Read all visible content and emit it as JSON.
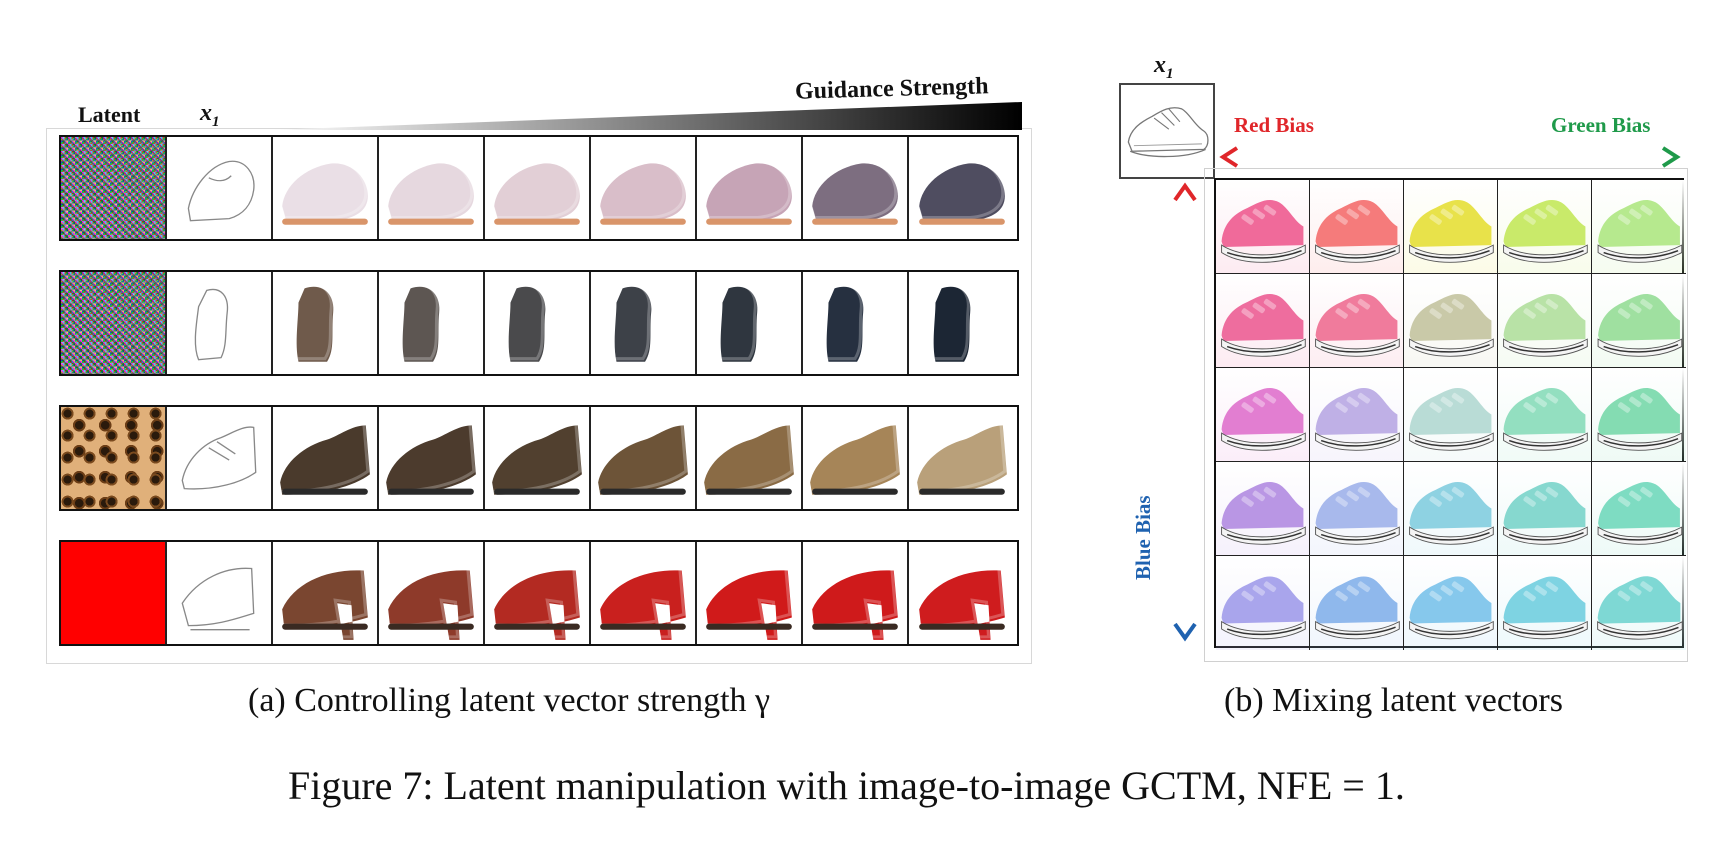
{
  "panel_a": {
    "latent_label": "Latent",
    "x1_label": "x",
    "x1_sub": "1",
    "guidance_label": "Guidance Strength",
    "caption": "(a) Controlling latent vector strength γ",
    "rows": [
      {
        "latent": "noise",
        "colors": [
          "#eadfe6",
          "#e6d8df",
          "#e2cfd6",
          "#d9bec9",
          "#c6a4b6",
          "#7d6e80",
          "#4f4d60"
        ]
      },
      {
        "latent": "noise",
        "colors": [
          "#6f5a4b",
          "#5d5652",
          "#4a4a4c",
          "#3d4148",
          "#2f363f",
          "#263040",
          "#1c2634"
        ]
      },
      {
        "latent": "leopard",
        "colors": [
          "#4a3a2c",
          "#4c3b2d",
          "#51402f",
          "#6d5438",
          "#8a6b45",
          "#a68558",
          "#b9a07a"
        ]
      },
      {
        "latent": "red",
        "colors": [
          "#7a4630",
          "#8e3a2a",
          "#b32a22",
          "#c9201e",
          "#d01a1a",
          "#cf1a1b",
          "#cf1c1e"
        ]
      }
    ]
  },
  "panel_b": {
    "x1_label": "x",
    "x1_sub": "1",
    "red_bias": "Red Bias",
    "green_bias": "Green Bias",
    "blue_bias": "Blue Bias",
    "caption": "(b) Mixing latent vectors",
    "grid_colors": [
      [
        "#f06a9a",
        "#f57b7b",
        "#e8e24a",
        "#c9ea6a",
        "#b6e98e"
      ],
      [
        "#ee6d9e",
        "#f07b9c",
        "#c9c9a8",
        "#b8e2a6",
        "#9fe0a0"
      ],
      [
        "#e27ed1",
        "#bfb0e6",
        "#b9dcd6",
        "#93dfc0",
        "#84dcb2"
      ],
      [
        "#b996e4",
        "#a8b9ec",
        "#8ed2e2",
        "#86d8cf",
        "#7edcc2"
      ],
      [
        "#a9a5ec",
        "#8fb8ec",
        "#86c8ec",
        "#7ed3e2",
        "#7ed8d4"
      ]
    ]
  },
  "figure_caption": "Figure 7: Latent manipulation with image-to-image GCTM, NFE = 1."
}
